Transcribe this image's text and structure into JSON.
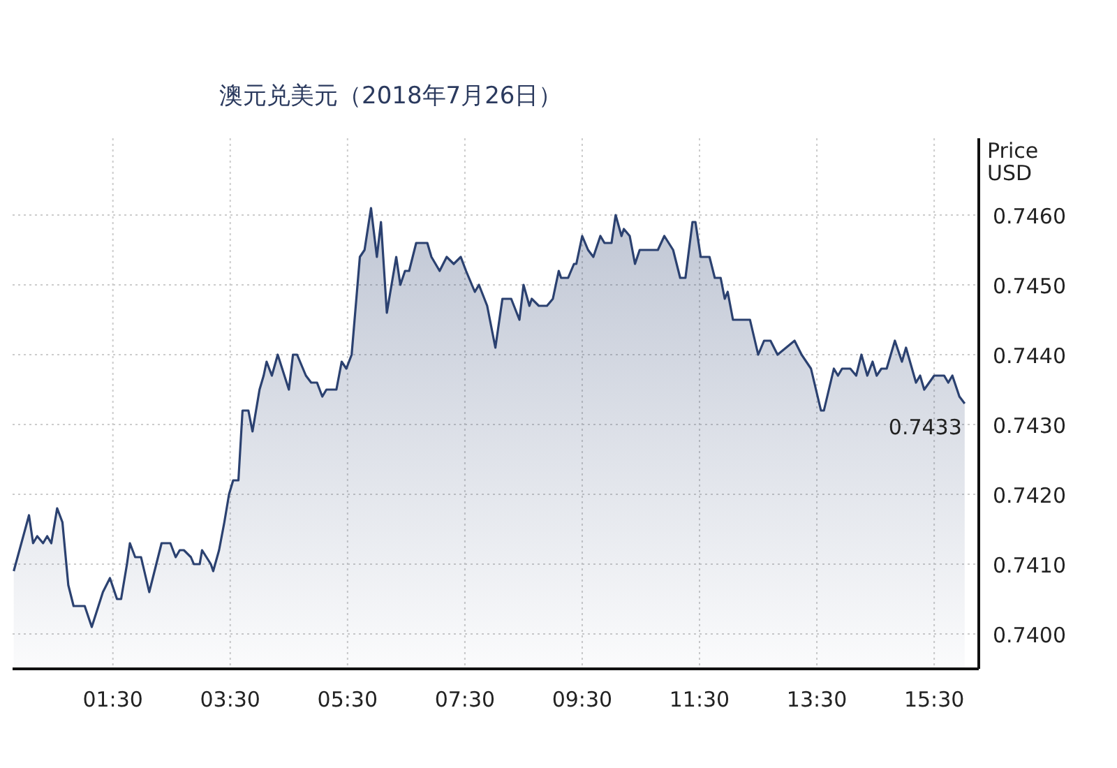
{
  "chart_data": {
    "type": "area",
    "title": "澳元兑美元（2018年7月26日）",
    "ylabel": "Price USD",
    "xlim": [
      -0.21,
      16.26
    ],
    "ylim": [
      0.7395,
      0.7471
    ],
    "xticks": [
      {
        "value": 1.5,
        "label": "01:30"
      },
      {
        "value": 3.5,
        "label": "03:30"
      },
      {
        "value": 5.5,
        "label": "05:30"
      },
      {
        "value": 7.5,
        "label": "07:30"
      },
      {
        "value": 9.5,
        "label": "09:30"
      },
      {
        "value": 11.5,
        "label": "11:30"
      },
      {
        "value": 13.5,
        "label": "13:30"
      },
      {
        "value": 15.5,
        "label": "15:30"
      }
    ],
    "yticks": [
      {
        "value": 0.74,
        "label": "0.7400"
      },
      {
        "value": 0.741,
        "label": "0.7410"
      },
      {
        "value": 0.742,
        "label": "0.7420"
      },
      {
        "value": 0.743,
        "label": "0.7430"
      },
      {
        "value": 0.744,
        "label": "0.7440"
      },
      {
        "value": 0.745,
        "label": "0.7450"
      },
      {
        "value": 0.746,
        "label": "0.7460"
      }
    ],
    "grid": true,
    "annotations": [
      {
        "text": "0.7433",
        "x": 16.02,
        "y": 0.7433
      }
    ],
    "x": [
      -0.19,
      0.07,
      0.14,
      0.21,
      0.31,
      0.38,
      0.45,
      0.55,
      0.64,
      0.74,
      0.83,
      1.02,
      1.14,
      1.33,
      1.45,
      1.57,
      1.64,
      1.74,
      1.79,
      1.88,
      1.98,
      2.12,
      2.33,
      2.4,
      2.48,
      2.57,
      2.64,
      2.71,
      2.83,
      2.88,
      2.98,
      3.02,
      3.17,
      3.21,
      3.31,
      3.4,
      3.48,
      3.55,
      3.64,
      3.71,
      3.81,
      3.88,
      4.0,
      4.07,
      4.12,
      4.21,
      4.31,
      4.5,
      4.57,
      4.64,
      4.79,
      4.88,
      4.98,
      5.07,
      5.14,
      5.31,
      5.4,
      5.48,
      5.57,
      5.71,
      5.79,
      5.9,
      6.0,
      6.07,
      6.17,
      6.33,
      6.4,
      6.48,
      6.55,
      6.67,
      6.86,
      6.93,
      7.07,
      7.19,
      7.31,
      7.43,
      7.52,
      7.67,
      7.74,
      7.88,
      8.02,
      8.14,
      8.29,
      8.43,
      8.5,
      8.6,
      8.64,
      8.76,
      8.9,
      9.0,
      9.1,
      9.14,
      9.26,
      9.36,
      9.4,
      9.5,
      9.6,
      9.69,
      9.81,
      9.88,
      10.0,
      10.07,
      10.17,
      10.21,
      10.31,
      10.4,
      10.48,
      10.79,
      10.9,
      11.05,
      11.17,
      11.26,
      11.38,
      11.43,
      11.52,
      11.62,
      11.67,
      11.76,
      11.86,
      11.93,
      11.98,
      12.07,
      12.21,
      12.29,
      12.36,
      12.5,
      12.6,
      12.71,
      12.83,
      13.12,
      13.24,
      13.4,
      13.57,
      13.62,
      13.79,
      13.86,
      13.93,
      14.07,
      14.17,
      14.26,
      14.36,
      14.45,
      14.52,
      14.6,
      14.69,
      14.83,
      14.95,
      15.02,
      15.19,
      15.26,
      15.33,
      15.5,
      15.67,
      15.74,
      15.81,
      15.93,
      16.02
    ],
    "series": [
      {
        "color": "#2b4170",
        "values": [
          0.7409,
          0.7417,
          0.7413,
          0.7414,
          0.7413,
          0.7414,
          0.7413,
          0.7418,
          0.7416,
          0.7407,
          0.7404,
          0.7404,
          0.7401,
          0.7406,
          0.7408,
          0.7405,
          0.7405,
          0.741,
          0.7413,
          0.7411,
          0.7411,
          0.7406,
          0.7413,
          0.7413,
          0.7413,
          0.7411,
          0.7412,
          0.7412,
          0.7411,
          0.741,
          0.741,
          0.7412,
          0.741,
          0.7409,
          0.7412,
          0.7416,
          0.742,
          0.7422,
          0.7422,
          0.7432,
          0.7432,
          0.7429,
          0.7435,
          0.7437,
          0.7439,
          0.7437,
          0.744,
          0.7435,
          0.744,
          0.744,
          0.7437,
          0.7436,
          0.7436,
          0.7434,
          0.7435,
          0.7435,
          0.7439,
          0.7438,
          0.744,
          0.7454,
          0.7455,
          0.7461,
          0.7454,
          0.7459,
          0.7446,
          0.7454,
          0.745,
          0.7452,
          0.7452,
          0.7456,
          0.7456,
          0.7454,
          0.7452,
          0.7454,
          0.7453,
          0.7454,
          0.7452,
          0.7449,
          0.745,
          0.7447,
          0.7441,
          0.7448,
          0.7448,
          0.7445,
          0.745,
          0.7447,
          0.7448,
          0.7447,
          0.7447,
          0.7448,
          0.7452,
          0.7451,
          0.7451,
          0.7453,
          0.7453,
          0.7457,
          0.7455,
          0.7454,
          0.7457,
          0.7456,
          0.7456,
          0.746,
          0.7457,
          0.7458,
          0.7457,
          0.7453,
          0.7455,
          0.7455,
          0.7457,
          0.7455,
          0.7451,
          0.7451,
          0.7459,
          0.7459,
          0.7454,
          0.7454,
          0.7454,
          0.7451,
          0.7451,
          0.7448,
          0.7449,
          0.7445,
          0.7445,
          0.7445,
          0.7445,
          0.744,
          0.7442,
          0.7442,
          0.744,
          0.7442,
          0.744,
          0.7438,
          0.7432,
          0.7432,
          0.7438,
          0.7437,
          0.7438,
          0.7438,
          0.7437,
          0.744,
          0.7437,
          0.7439,
          0.7437,
          0.7438,
          0.7438,
          0.7442,
          0.7439,
          0.7441,
          0.7436,
          0.7437,
          0.7435,
          0.7437,
          0.7437,
          0.7436,
          0.7437,
          0.7434,
          0.7433
        ]
      }
    ]
  }
}
